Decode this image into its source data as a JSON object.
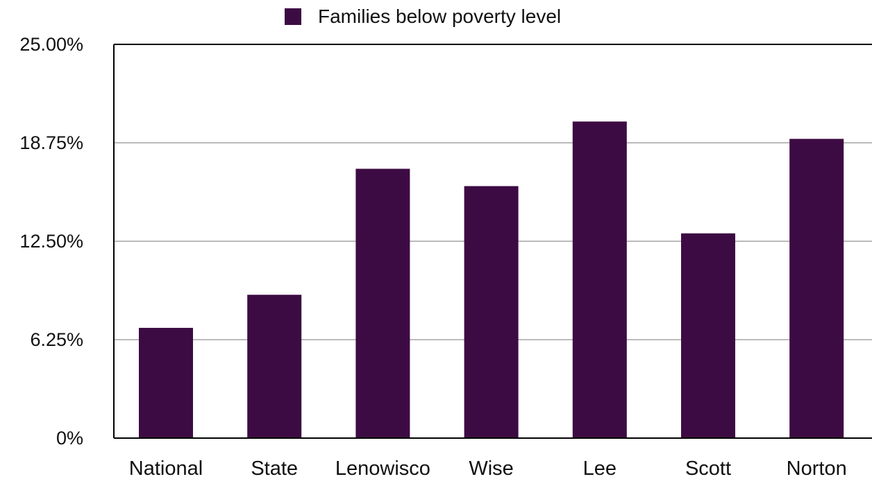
{
  "chart_data": {
    "type": "bar",
    "categories": [
      "National",
      "State",
      "Lenowisco",
      "Wise",
      "Lee",
      "Scott",
      "Norton"
    ],
    "series": [
      {
        "name": "Families below poverty level",
        "values": [
          7.0,
          9.1,
          17.1,
          16.0,
          20.1,
          13.0,
          19.0
        ]
      }
    ],
    "yticks": [
      {
        "value": 0,
        "label": "0%"
      },
      {
        "value": 6.25,
        "label": "6.25%"
      },
      {
        "value": 12.5,
        "label": "12.50%"
      },
      {
        "value": 18.75,
        "label": "18.75%"
      },
      {
        "value": 25,
        "label": "25.00%"
      }
    ],
    "ylim": [
      0,
      25
    ],
    "grid": true,
    "legend_position": "top-center",
    "colors": {
      "bar": "#3d0b43",
      "grid": "#bbbbbb",
      "axis": "#000000"
    }
  }
}
